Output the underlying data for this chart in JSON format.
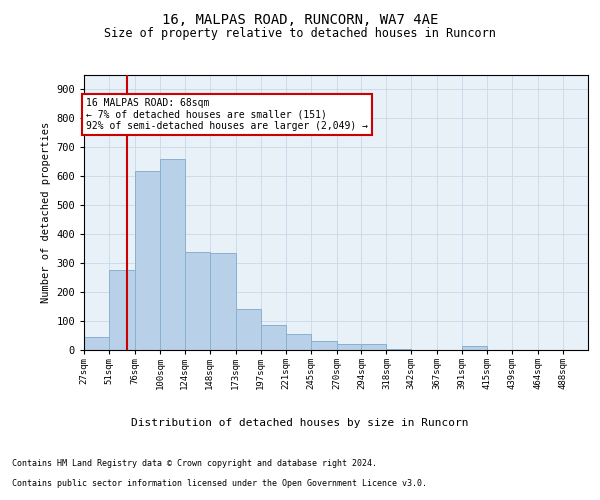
{
  "title_line1": "16, MALPAS ROAD, RUNCORN, WA7 4AE",
  "title_line2": "Size of property relative to detached houses in Runcorn",
  "xlabel": "Distribution of detached houses by size in Runcorn",
  "ylabel": "Number of detached properties",
  "annotation_line1": "16 MALPAS ROAD: 68sqm",
  "annotation_line2": "← 7% of detached houses are smaller (151)",
  "annotation_line3": "92% of semi-detached houses are larger (2,049) →",
  "property_size": 68,
  "bar_color": "#b8d0e8",
  "bar_edge_color": "#8ab0d0",
  "marker_color": "#cc0000",
  "annotation_box_color": "#ffffff",
  "annotation_box_edge": "#cc0000",
  "background_color": "#ffffff",
  "grid_color": "#c8d8e8",
  "bin_edges": [
    27,
    51,
    76,
    100,
    124,
    148,
    173,
    197,
    221,
    245,
    270,
    294,
    318,
    342,
    367,
    391,
    415,
    439,
    464,
    488,
    512
  ],
  "bin_heights": [
    45,
    275,
    620,
    660,
    340,
    335,
    140,
    85,
    55,
    30,
    20,
    20,
    5,
    0,
    0,
    15,
    0,
    0,
    0,
    0
  ],
  "ylim": [
    0,
    950
  ],
  "yticks": [
    0,
    100,
    200,
    300,
    400,
    500,
    600,
    700,
    800,
    900
  ],
  "footnote1": "Contains HM Land Registry data © Crown copyright and database right 2024.",
  "footnote2": "Contains public sector information licensed under the Open Government Licence v3.0."
}
